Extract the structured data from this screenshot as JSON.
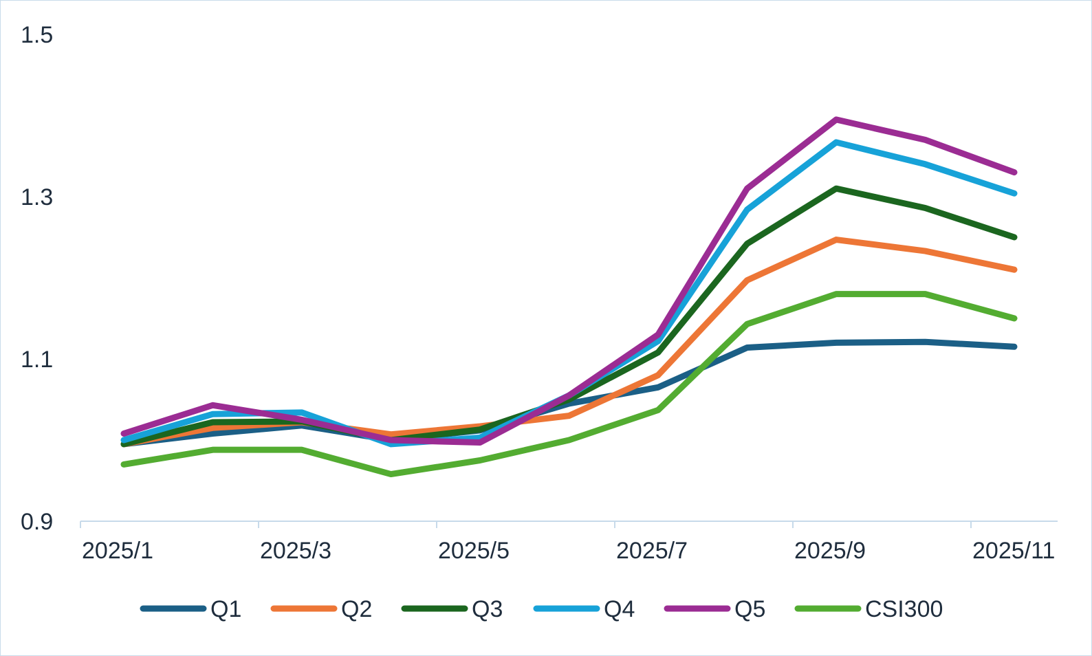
{
  "chart_data": {
    "type": "line",
    "title": "",
    "xlabel": "",
    "ylabel": "",
    "x": [
      "2025/1",
      "2025/2",
      "2025/3",
      "2025/4",
      "2025/5",
      "2025/6",
      "2025/7",
      "2025/8",
      "2025/9",
      "2025/10",
      "2025/11"
    ],
    "x_tick_labels": [
      "2025/1",
      "2025/3",
      "2025/5",
      "2025/7",
      "2025/9",
      "2025/11"
    ],
    "y_tick_labels": [
      "0.9",
      "1.1",
      "1.3",
      "1.5"
    ],
    "ylim": [
      0.9,
      1.5
    ],
    "grid": false,
    "legend_position": "bottom",
    "series": [
      {
        "name": "Q1",
        "color": "#1b5f86",
        "values": [
          0.995,
          1.008,
          1.018,
          1.0,
          1.012,
          1.045,
          1.065,
          1.114,
          1.12,
          1.121,
          1.115
        ]
      },
      {
        "name": "Q2",
        "color": "#ed7636",
        "values": [
          0.995,
          1.015,
          1.022,
          1.007,
          1.017,
          1.03,
          1.08,
          1.197,
          1.247,
          1.233,
          1.21
        ]
      },
      {
        "name": "Q3",
        "color": "#1b661f",
        "values": [
          0.995,
          1.022,
          1.023,
          1.0,
          1.013,
          1.05,
          1.108,
          1.242,
          1.31,
          1.286,
          1.25
        ]
      },
      {
        "name": "Q4",
        "color": "#17a2d8",
        "values": [
          1.0,
          1.032,
          1.034,
          0.995,
          1.003,
          1.055,
          1.122,
          1.284,
          1.367,
          1.34,
          1.304
        ]
      },
      {
        "name": "Q5",
        "color": "#9b2c93",
        "values": [
          1.008,
          1.043,
          1.025,
          1.0,
          0.997,
          1.055,
          1.13,
          1.31,
          1.395,
          1.37,
          1.33
        ]
      },
      {
        "name": "CSI300",
        "color": "#53ac31",
        "values": [
          0.97,
          0.988,
          0.988,
          0.958,
          0.975,
          1.0,
          1.037,
          1.143,
          1.18,
          1.18,
          1.15
        ]
      }
    ]
  }
}
